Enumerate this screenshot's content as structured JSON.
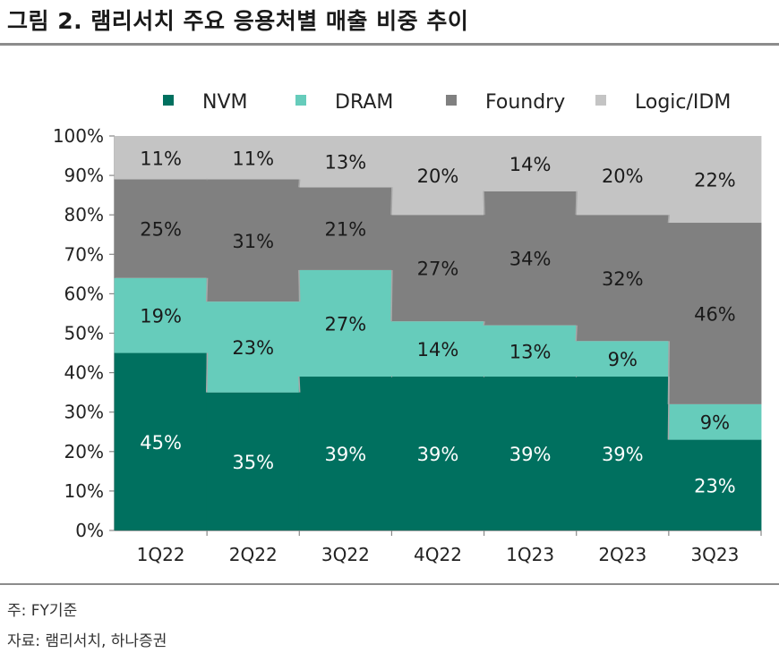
{
  "figure": {
    "title": "그림 2. 램리서치 주요 응용처별 매출 비중 추이",
    "note": "주: FY기준",
    "source": "자료: 램리서치, 하나증권"
  },
  "chart_data": {
    "type": "bar",
    "stacked": true,
    "categories": [
      "1Q22",
      "2Q22",
      "3Q22",
      "4Q22",
      "1Q23",
      "2Q23",
      "3Q23"
    ],
    "series": [
      {
        "name": "NVM",
        "color": "#00705f",
        "values": [
          45,
          35,
          39,
          39,
          39,
          39,
          23
        ]
      },
      {
        "name": "DRAM",
        "color": "#66ccbb",
        "values": [
          19,
          23,
          27,
          14,
          13,
          9,
          9
        ]
      },
      {
        "name": "Foundry",
        "color": "#808080",
        "values": [
          25,
          31,
          21,
          27,
          34,
          32,
          46
        ]
      },
      {
        "name": "Logic/IDM",
        "color": "#c4c4c4",
        "values": [
          11,
          11,
          13,
          20,
          14,
          20,
          22
        ]
      }
    ],
    "ylim": [
      0,
      100
    ],
    "yticks": [
      "0%",
      "10%",
      "20%",
      "30%",
      "40%",
      "50%",
      "60%",
      "70%",
      "80%",
      "90%",
      "100%"
    ],
    "data_label_suffix": "%",
    "legend_position": "top",
    "grid": false,
    "connector_lines": true
  }
}
